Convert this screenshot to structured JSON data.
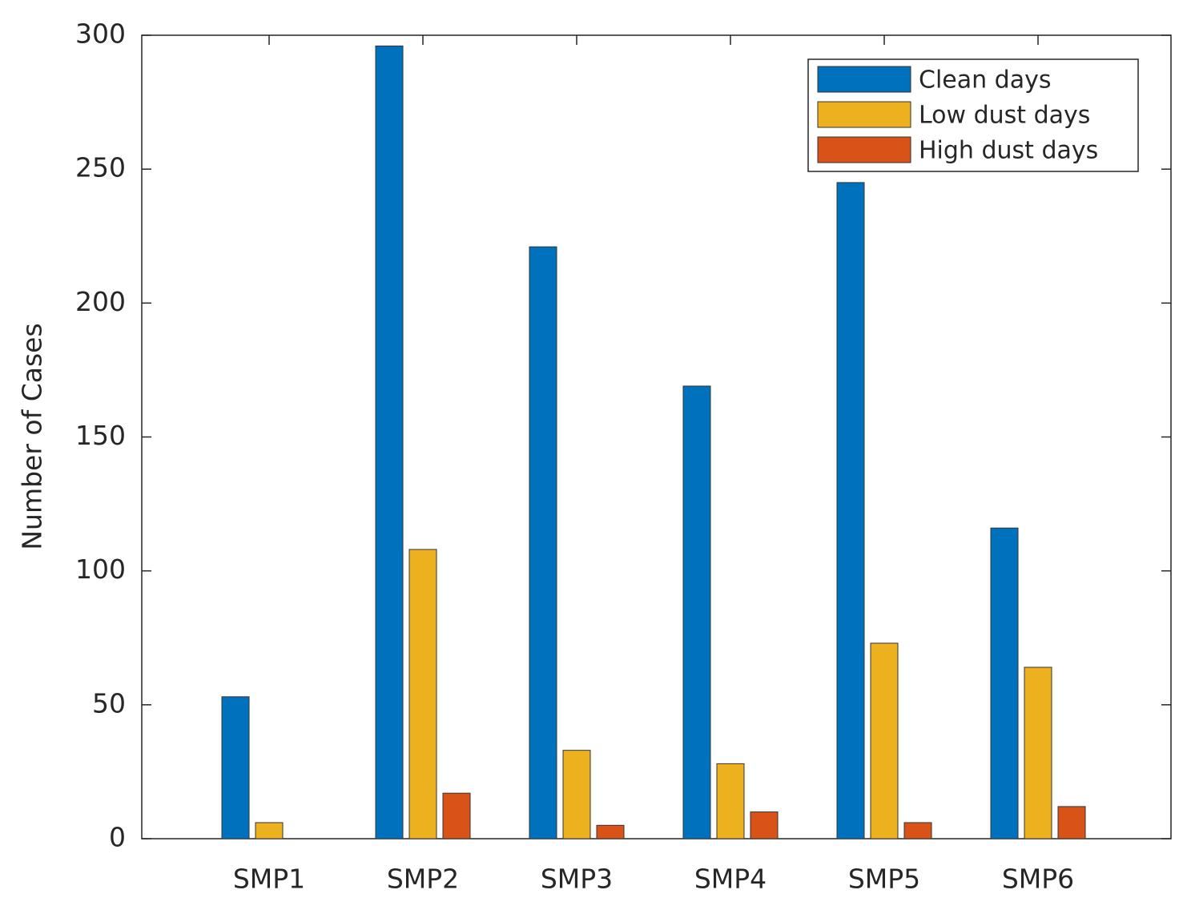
{
  "chart_data": {
    "type": "bar",
    "y_label": "Number of Cases",
    "categories": [
      "SMP1",
      "SMP2",
      "SMP3",
      "SMP4",
      "SMP5",
      "SMP6"
    ],
    "series": [
      {
        "name": "Clean days",
        "color": "#0072BD",
        "values": [
          53,
          296,
          221,
          169,
          245,
          116
        ]
      },
      {
        "name": "Low dust days",
        "color": "#EDB120",
        "values": [
          6,
          108,
          33,
          28,
          73,
          64
        ]
      },
      {
        "name": "High dust days",
        "color": "#D95319",
        "values": [
          0,
          17,
          5,
          10,
          6,
          12
        ]
      }
    ],
    "ylim": [
      0,
      300
    ],
    "yticks": [
      0,
      50,
      100,
      150,
      200,
      250,
      300
    ],
    "legend": "upper right"
  }
}
